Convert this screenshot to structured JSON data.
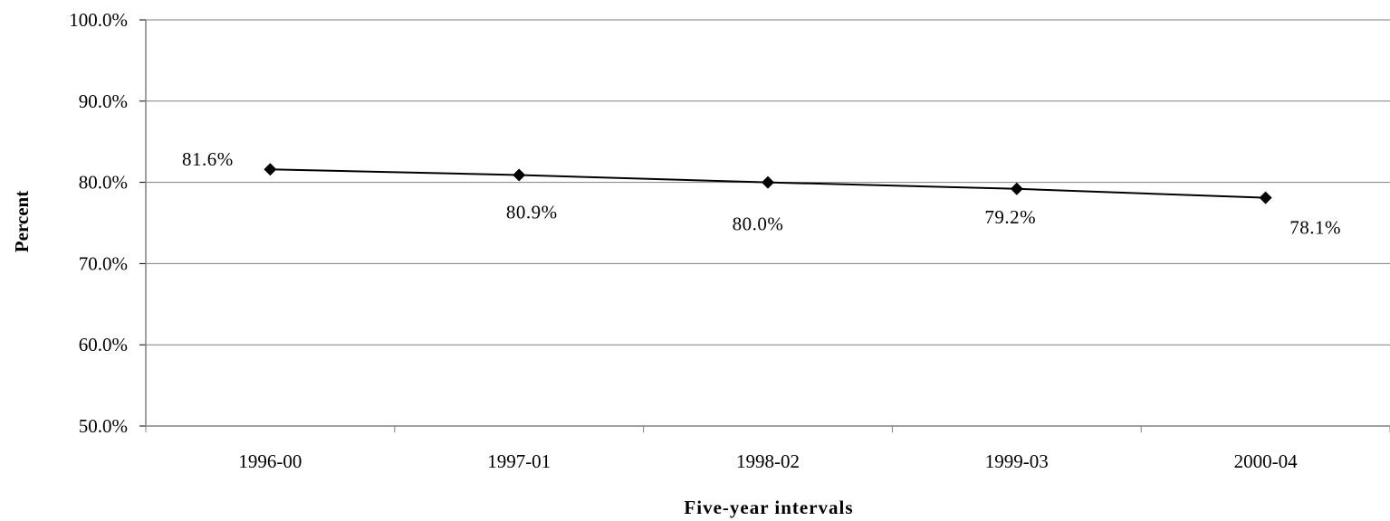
{
  "chart_data": {
    "type": "line",
    "title": "",
    "xlabel": "Five-year intervals",
    "ylabel": "Percent",
    "categories": [
      "1996-00",
      "1997-01",
      "1998-02",
      "1999-03",
      "2000-04"
    ],
    "series": [
      {
        "values": [
          81.6,
          80.9,
          80.0,
          79.2,
          78.1
        ],
        "data_labels": [
          "81.6%",
          "80.9%",
          "80.0%",
          "79.2%",
          "78.1%"
        ],
        "marker": "diamond",
        "color": "#000000"
      }
    ],
    "ylim": [
      50,
      100
    ],
    "yticks": [
      50,
      60,
      70,
      80,
      90,
      100
    ],
    "ytick_labels": [
      "50.0%",
      "60.0%",
      "70.0%",
      "80.0%",
      "90.0%",
      "100.0%"
    ],
    "grid": true,
    "legend": "none"
  }
}
